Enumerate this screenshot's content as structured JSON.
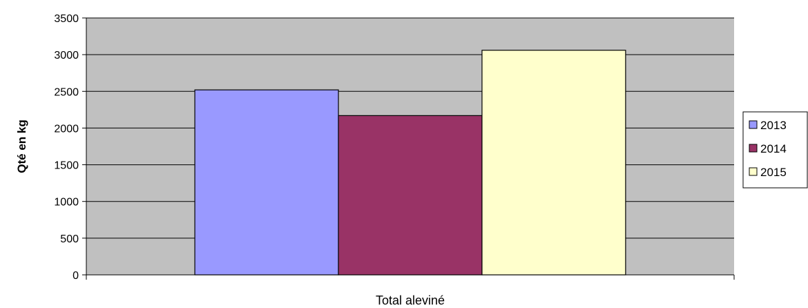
{
  "chart_data": {
    "type": "bar",
    "categories": [
      "Total aleviné"
    ],
    "series": [
      {
        "name": "2013",
        "values": [
          2520
        ],
        "color": "#9999ff"
      },
      {
        "name": "2014",
        "values": [
          2170
        ],
        "color": "#993366"
      },
      {
        "name": "2015",
        "values": [
          3060
        ],
        "color": "#ffffcc"
      }
    ],
    "title": "",
    "xlabel": "Total aleviné",
    "ylabel": "Qté en kg",
    "ylim": [
      0,
      3500
    ],
    "yticks": [
      "0",
      "500",
      "1000",
      "1500",
      "2000",
      "2500",
      "3000",
      "3500"
    ],
    "grid": true,
    "legend": "right",
    "plot_background": "#c0c0c0"
  }
}
